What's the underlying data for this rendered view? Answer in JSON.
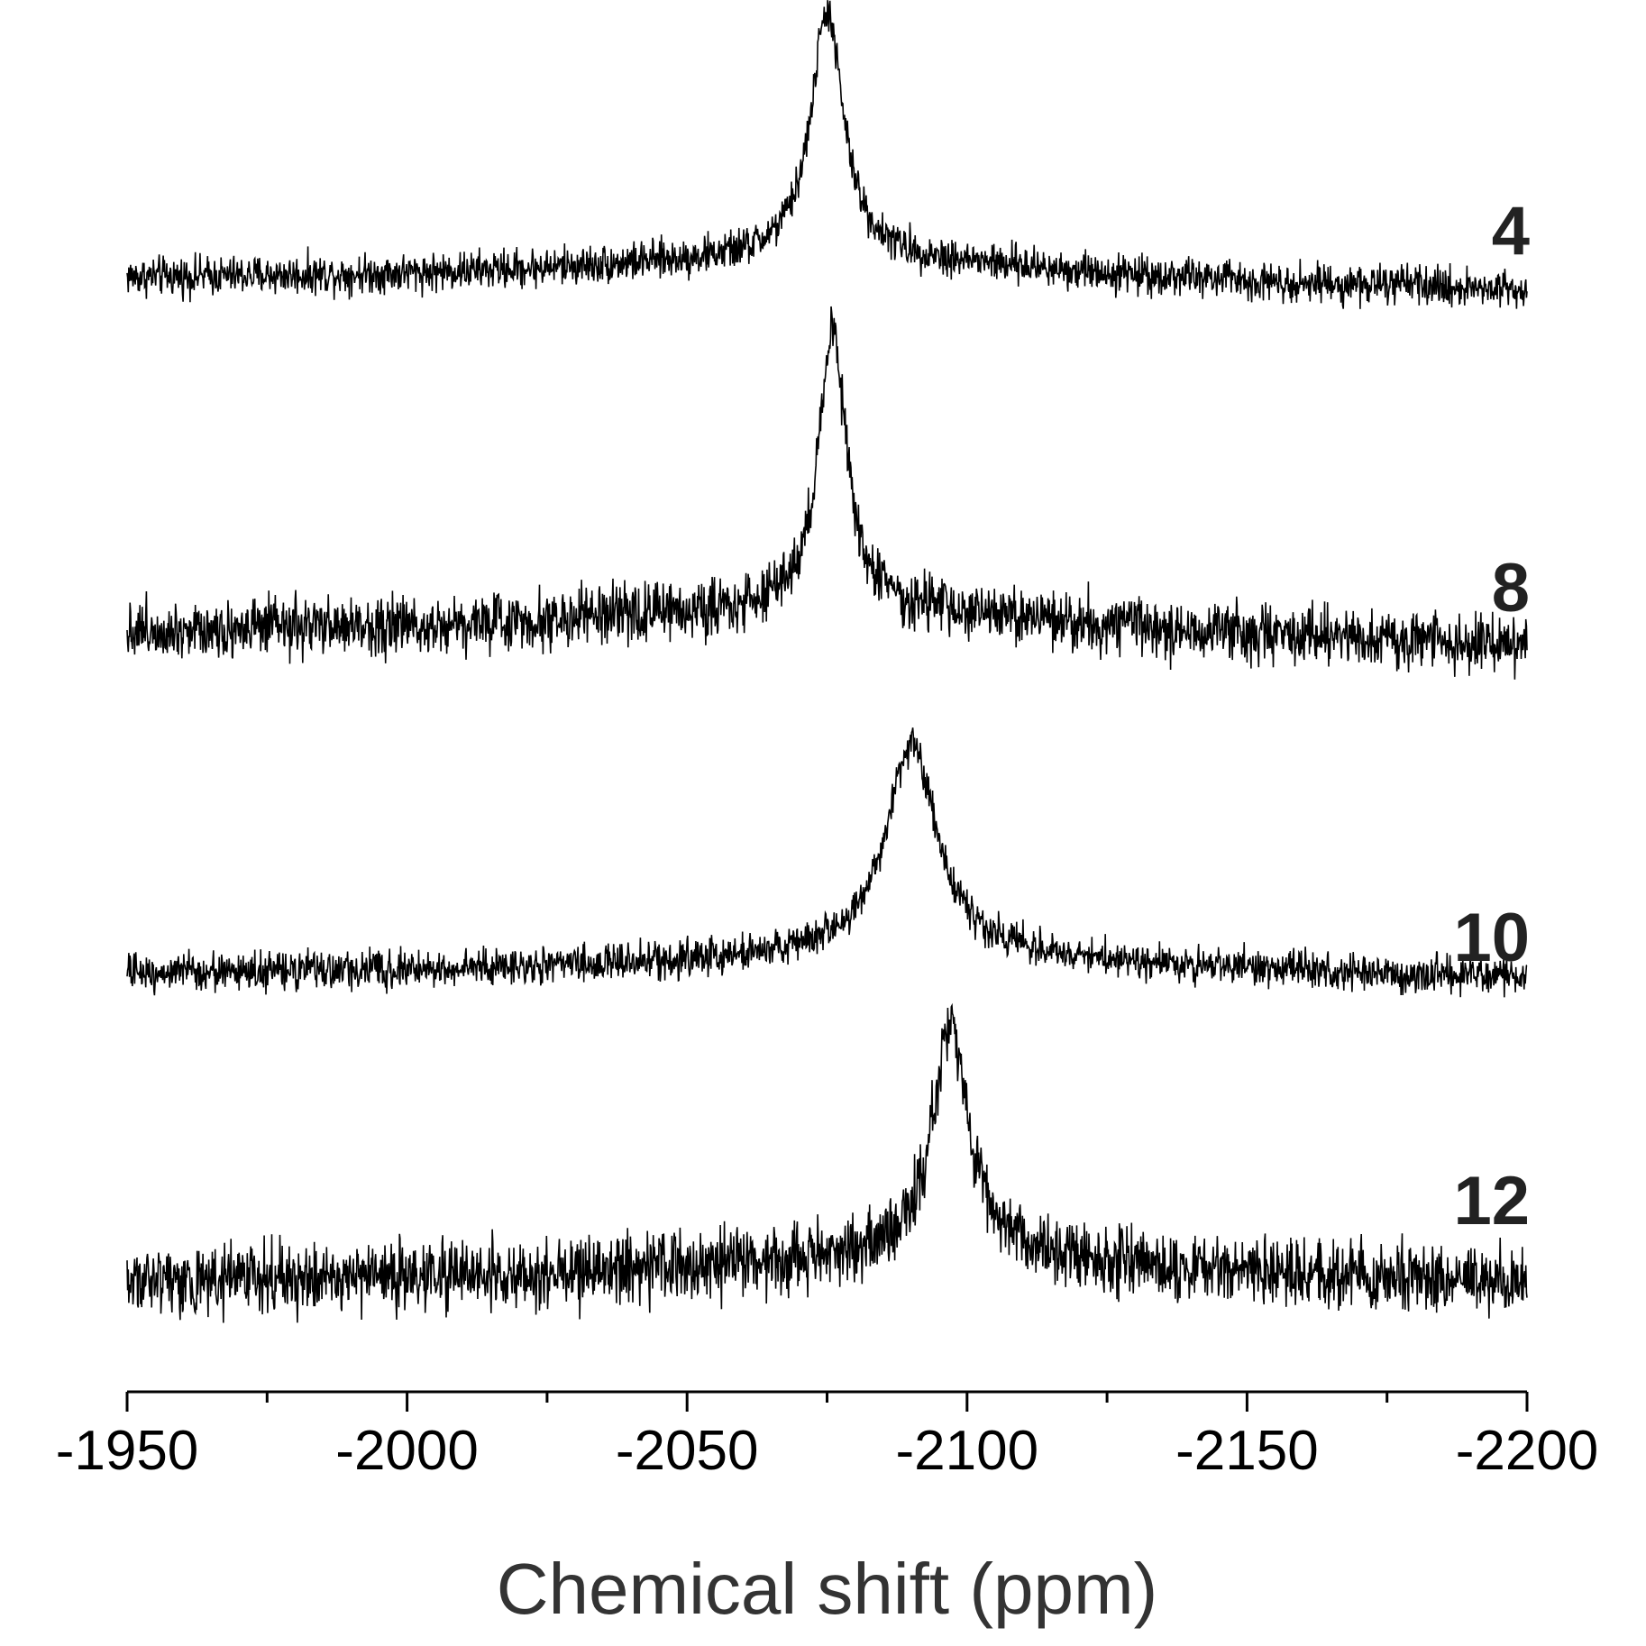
{
  "chart_data": {
    "type": "line",
    "title": "",
    "xlabel": "Chemical shift (ppm)",
    "ylabel": "",
    "xlim": [
      -1950,
      -2200
    ],
    "x_reversed": true,
    "x_ticks": [
      -1950,
      -2000,
      -2050,
      -2100,
      -2150,
      -2200
    ],
    "x_tick_labels": [
      "-1950",
      "-2000",
      "-2050",
      "-2100",
      "-2150",
      "-2200"
    ],
    "x_minor_ticks": [
      -1975,
      -2025,
      -2075,
      -2125,
      -2175
    ],
    "y_axis_visible": false,
    "grid": false,
    "stacked": true,
    "line_color": "#000000",
    "series": [
      {
        "name": "4",
        "peak_position_ppm": -2075,
        "peak_fwhm_ppm": 7,
        "peak_height": 1.0,
        "baseline_tilt": -0.05,
        "noise": 0.06
      },
      {
        "name": "8",
        "peak_position_ppm": -2076,
        "peak_fwhm_ppm": 6,
        "peak_height": 1.0,
        "baseline_tilt": -0.05,
        "noise": 0.08
      },
      {
        "name": "10",
        "peak_position_ppm": -2090,
        "peak_fwhm_ppm": 11,
        "peak_height": 0.88,
        "baseline_tilt": -0.03,
        "noise": 0.06
      },
      {
        "name": "12",
        "peak_position_ppm": -2097,
        "peak_fwhm_ppm": 8,
        "peak_height": 0.9,
        "baseline_tilt": -0.02,
        "noise": 0.1
      }
    ]
  }
}
